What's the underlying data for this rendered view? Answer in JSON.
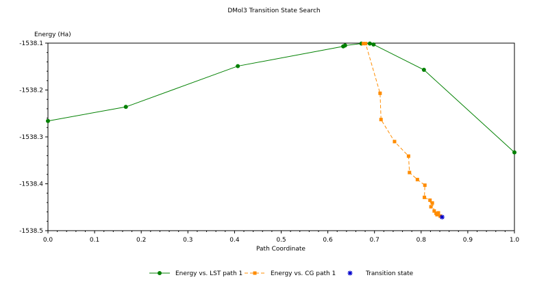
{
  "chart_data": {
    "type": "line",
    "title": "DMol3 Transition State Search",
    "ylabel": "Energy (Ha)",
    "xlabel": "Path Coordinate",
    "xlim": [
      0,
      1
    ],
    "ylim": [
      -1538.5,
      -1538.1
    ],
    "x_ticks": [
      "0.0",
      "0.1",
      "0.2",
      "0.3",
      "0.4",
      "0.5",
      "0.6",
      "0.7",
      "0.8",
      "0.9",
      "1.0"
    ],
    "y_ticks": [
      "-1538.1",
      "-1538.2",
      "-1538.3",
      "-1538.4",
      "-1538.5"
    ],
    "grid": false,
    "legend_position": "bottom",
    "series": [
      {
        "name": "Energy vs. LST path 1",
        "color": "#008000",
        "line_style": "solid",
        "marker": "circle",
        "x": [
          0.0,
          0.167,
          0.407,
          0.633,
          0.637,
          0.672,
          0.69,
          0.698,
          0.806,
          1.0
        ],
        "y": [
          -1538.266,
          -1538.236,
          -1538.149,
          -1538.107,
          -1538.105,
          -1538.101,
          -1538.101,
          -1538.103,
          -1538.157,
          -1538.333
        ]
      },
      {
        "name": "Energy vs. CG path 1",
        "color": "#ff8c00",
        "line_style": "dashed",
        "marker": "square",
        "x": [
          0.676,
          0.681,
          0.712,
          0.714,
          0.743,
          0.773,
          0.775,
          0.792,
          0.808,
          0.807,
          0.819,
          0.821,
          0.824,
          0.828,
          0.832,
          0.834,
          0.837,
          0.841
        ],
        "y": [
          -1538.101,
          -1538.101,
          -1538.207,
          -1538.263,
          -1538.31,
          -1538.341,
          -1538.376,
          -1538.391,
          -1538.403,
          -1538.429,
          -1538.435,
          -1538.449,
          -1538.441,
          -1538.458,
          -1538.463,
          -1538.466,
          -1538.462,
          -1538.469
        ]
      },
      {
        "name": "Transition state",
        "color": "#0000cc",
        "line_style": "none",
        "marker": "star",
        "x": [
          0.845
        ],
        "y": [
          -1538.471
        ]
      }
    ]
  }
}
